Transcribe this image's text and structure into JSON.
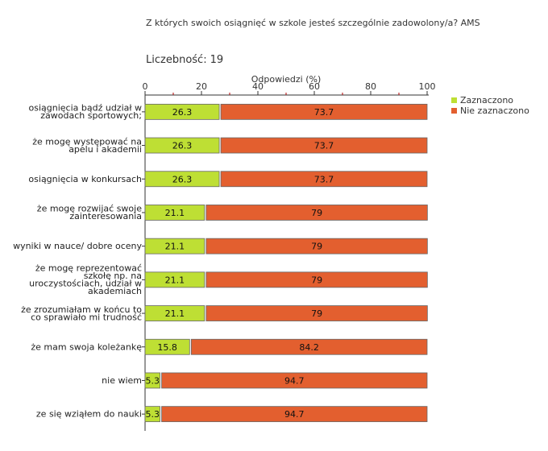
{
  "question": "Z których swoich osiągnięć w szkole jesteś szczególnie zadowolony/a? AMS",
  "count": {
    "label": "Liczebność:",
    "value": "19"
  },
  "colors": {
    "selected": "#bedf34",
    "not_selected": "#e35f2f",
    "axis": "#333333",
    "tick_minor": "#b00000"
  },
  "chart_data": {
    "type": "bar",
    "orientation": "horizontal",
    "stacked": true,
    "title": "",
    "xlabel": "Odpowiedzi (%)",
    "ylabel": "",
    "xlim": [
      0,
      100
    ],
    "xticks": [
      0,
      20,
      40,
      60,
      80,
      100
    ],
    "legend_position": "top-right",
    "categories": [
      [
        "osiągnięcia bądź udział w",
        "zawodach sportowych;"
      ],
      [
        "że mogę występować na",
        "apelu i akademii"
      ],
      [
        "osiągnięcia w konkursach"
      ],
      [
        "że mogę rozwijać swoje",
        "zainteresowania"
      ],
      [
        "wyniki w nauce/ dobre oceny"
      ],
      [
        "że mogę reprezentować",
        "szkołę np. na",
        "uroczystościach, udział w",
        "akademiach"
      ],
      [
        "że zrozumiałam w końcu to",
        "co sprawiało mi trudność"
      ],
      [
        "że mam swoja koleżankę"
      ],
      [
        "nie wiem"
      ],
      [
        "ze się wziąłem do nauki"
      ]
    ],
    "series": [
      {
        "name": "Zaznaczono",
        "values": [
          26.3,
          26.3,
          26.3,
          21.1,
          21.1,
          21.1,
          21.1,
          15.8,
          5.3,
          5.3
        ]
      },
      {
        "name": "Nie zaznaczono",
        "values": [
          73.7,
          73.7,
          73.7,
          79,
          79,
          79,
          79,
          84.2,
          94.7,
          94.7
        ]
      }
    ]
  }
}
